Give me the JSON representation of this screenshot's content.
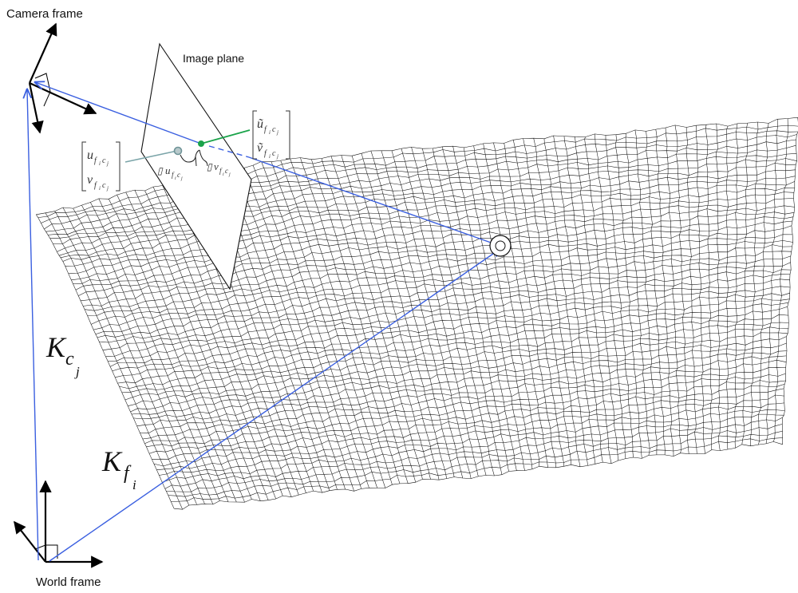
{
  "labels": {
    "camera_frame": "Camera frame",
    "image_plane": "Image plane",
    "world_frame": "World frame"
  },
  "vectors": {
    "k_cam": {
      "base": "K",
      "sub": "c",
      "subsub": "j"
    },
    "k_feat": {
      "base": "K",
      "sub": "f",
      "subsub": "i"
    }
  },
  "measured": {
    "u": "u",
    "v": "v",
    "sub": "f",
    "subsub1": "i",
    "sub2": "c",
    "subsub2": "j"
  },
  "predicted": {
    "u": "ũ",
    "v": "ṽ",
    "sub": "f",
    "subsub1": "i",
    "sub2": "c",
    "subsub2": "j"
  },
  "residuals": {
    "du": {
      "box": "▯",
      "sym": "u",
      "sub": "f",
      "ss1": "i",
      "sub2": "c",
      "ss2": "j"
    },
    "dv": {
      "box": "▯",
      "sym": "v",
      "sub": "f",
      "ss1": "i",
      "sub2": "c",
      "ss2": "j"
    }
  },
  "colors": {
    "ray": "#3a5fe0",
    "measured_point": "#7aa4a8",
    "predicted_point": "#1aa34a",
    "mesh": "#111111",
    "axes": "#000000"
  }
}
